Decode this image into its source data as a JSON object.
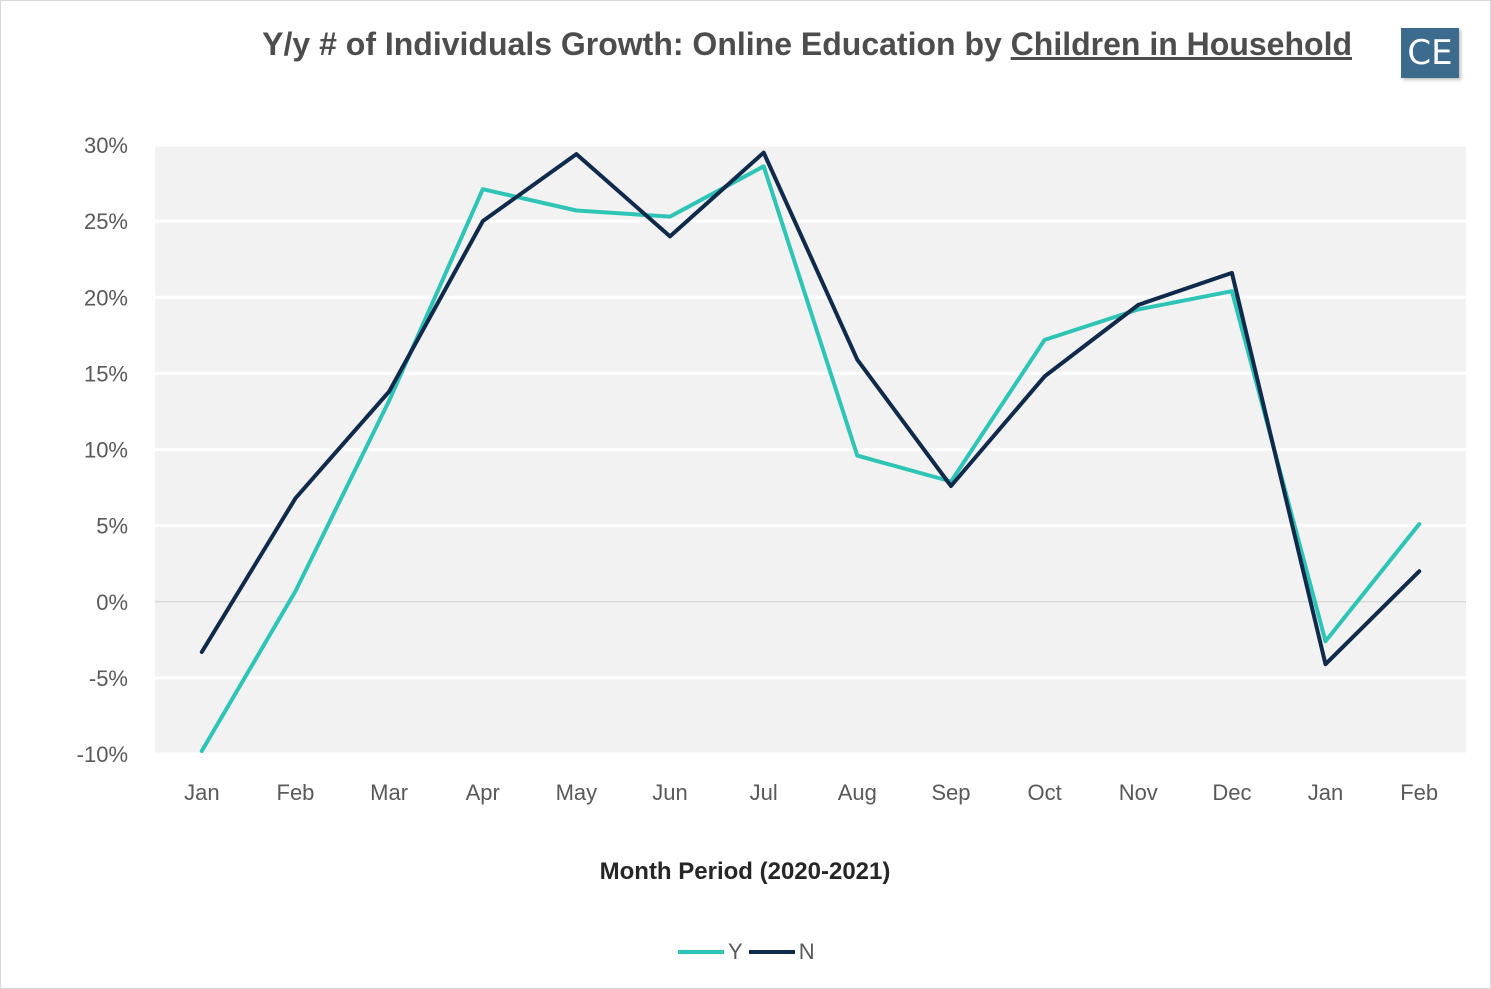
{
  "title": {
    "prefix": "Y/y # of Individuals Growth: Online Education by ",
    "emphasis": "Children in Household"
  },
  "logo": {
    "text": "CE",
    "color": "#3d6b8e"
  },
  "colors": {
    "Y": "#2ec4b6",
    "N": "#0f2a4a",
    "plot_bg": "#f2f2f2",
    "grid": "#ffffff",
    "zero_line": "#d9d9d9"
  },
  "chart_data": {
    "type": "line",
    "categories": [
      "Jan",
      "Feb",
      "Mar",
      "Apr",
      "May",
      "Jun",
      "Jul",
      "Aug",
      "Sep",
      "Oct",
      "Nov",
      "Dec",
      "Jan",
      "Feb"
    ],
    "series": [
      {
        "name": "Y",
        "values": [
          -9.8,
          0.7,
          13.2,
          27.1,
          25.7,
          25.3,
          28.6,
          9.6,
          7.9,
          17.2,
          19.2,
          20.4,
          -2.6,
          5.1
        ]
      },
      {
        "name": "N",
        "values": [
          -3.3,
          6.8,
          13.8,
          25.0,
          29.4,
          24.0,
          29.5,
          15.9,
          7.6,
          14.8,
          19.5,
          21.6,
          -4.1,
          2.0
        ]
      }
    ],
    "yticks": [
      "30%",
      "25%",
      "20%",
      "15%",
      "10%",
      "5%",
      "0%",
      "-5%",
      "-10%"
    ],
    "ylim": [
      -10,
      30
    ],
    "xlabel": "Month Period (2020-2021)",
    "ylabel": "",
    "grid": true,
    "legend_position": "bottom"
  }
}
